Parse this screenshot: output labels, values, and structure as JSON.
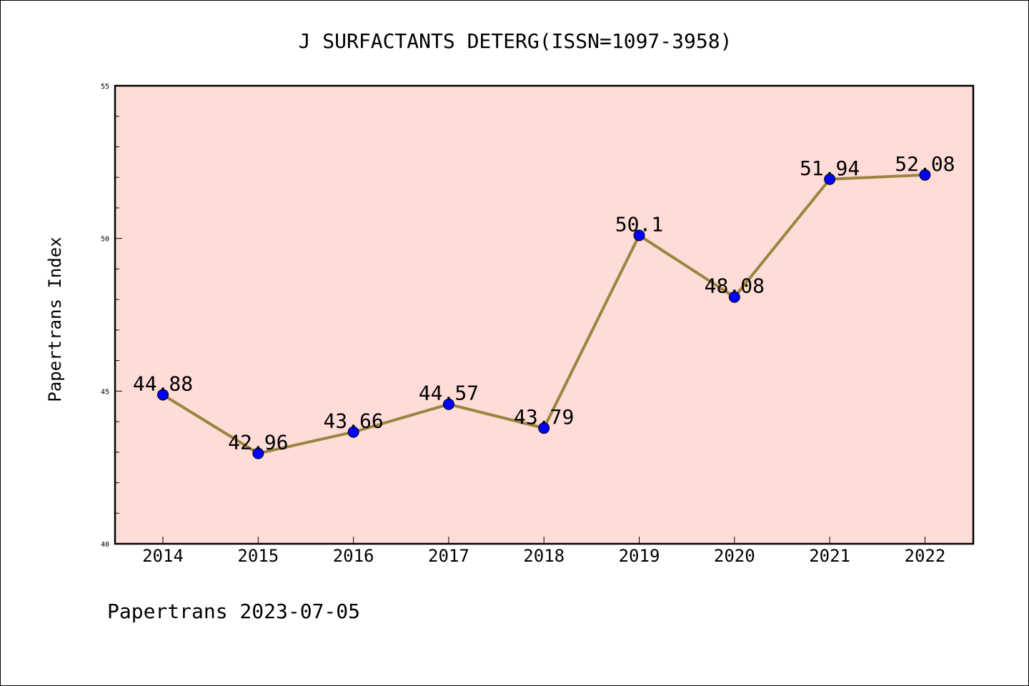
{
  "chart_data": {
    "type": "line",
    "title": "J SURFACTANTS DETERG(ISSN=1097-3958)",
    "xlabel": "",
    "ylabel": "Papertrans Index",
    "categories": [
      "2014",
      "2015",
      "2016",
      "2017",
      "2018",
      "2019",
      "2020",
      "2021",
      "2022"
    ],
    "series": [
      {
        "values": [
          44.88,
          42.96,
          43.66,
          44.57,
          43.79,
          50.1,
          48.08,
          51.94,
          52.08
        ],
        "labels": [
          "44.88",
          "42.96",
          "43.66",
          "44.57",
          "43.79",
          "50.1",
          "48.08",
          "51.94",
          "52.08"
        ]
      }
    ],
    "ylim": [
      40,
      55
    ],
    "y_ticks": [
      40,
      45,
      50,
      55
    ],
    "y_tick_labels": [
      "40",
      "45",
      "50",
      "55"
    ],
    "y_minor_step": 1,
    "grid": false,
    "colors": {
      "plot_background": "#ffdcd8",
      "line": "#9a8540",
      "marker": "#0000ff",
      "axis": "#000000"
    }
  },
  "footer": {
    "text": "Papertrans 2023-07-05"
  }
}
